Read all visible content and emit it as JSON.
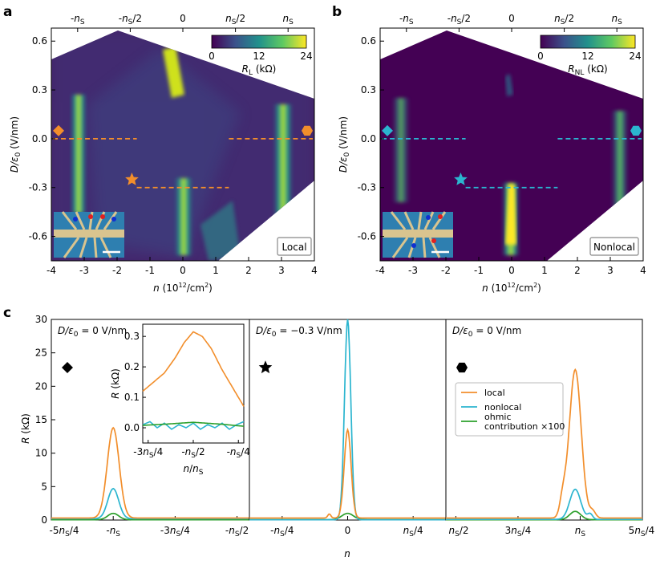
{
  "panel_labels": [
    "a",
    "b",
    "c"
  ],
  "chart_data": [
    {
      "type": "heatmap",
      "panel": "a",
      "xlabel": "n (10^12/cm^2)",
      "ylabel": "D/ε0 (V/nm)",
      "xlim": [
        -4,
        4
      ],
      "ylim": [
        -0.75,
        0.68
      ],
      "xticks": [
        "-4",
        "-3",
        "-2",
        "-1",
        "0",
        "1",
        "2",
        "3",
        "4"
      ],
      "yticks": [
        "-0.6",
        "-0.3",
        "0.0",
        "0.3",
        "0.6"
      ],
      "top_ticks": [
        "-nS",
        "-nS/2",
        "0",
        "nS/2",
        "nS"
      ],
      "colorbar": {
        "label": "RL (kΩ)",
        "min": 0,
        "mid": 12,
        "max": 24,
        "ticks": [
          "0",
          "12",
          "24"
        ]
      },
      "box_label": "Local",
      "features": [
        {
          "n": -3.2,
          "D_range": [
            -0.52,
            0.35
          ],
          "peak_kohm": 14
        },
        {
          "n": 0.0,
          "D_range": [
            -0.62,
            -0.22
          ],
          "peak_kohm": 18
        },
        {
          "n": -0.5,
          "D_range": [
            0.28,
            0.63
          ],
          "peak_kohm": 18
        },
        {
          "n": 3.1,
          "D_range": [
            -0.65,
            0.22
          ],
          "peak_kohm": 22
        }
      ],
      "cuts": [
        {
          "marker": "diamond",
          "D": 0.0,
          "n_range": [
            -3.95,
            -1.4
          ]
        },
        {
          "marker": "hexagon",
          "D": 0.0,
          "n_range": [
            1.4,
            3.95
          ]
        },
        {
          "marker": "star",
          "D": -0.3,
          "n_range": [
            -1.4,
            1.4
          ]
        }
      ],
      "cut_color": "#f28e2b"
    },
    {
      "type": "heatmap",
      "panel": "b",
      "xlabel": "n (10^12/cm^2)",
      "ylabel": "D/ε0 (V/nm)",
      "xlim": [
        -4,
        4
      ],
      "ylim": [
        -0.75,
        0.68
      ],
      "xticks": [
        "-4",
        "-3",
        "-2",
        "-1",
        "0",
        "1",
        "2",
        "3",
        "4"
      ],
      "yticks": [
        "-0.6",
        "-0.3",
        "0.0",
        "0.3",
        "0.6"
      ],
      "top_ticks": [
        "-nS",
        "-nS/2",
        "0",
        "nS/2",
        "nS"
      ],
      "colorbar": {
        "label": "RNL (kΩ)",
        "min": 0,
        "mid": 12,
        "max": 24,
        "ticks": [
          "0",
          "12",
          "24"
        ]
      },
      "box_label": "Nonlocal",
      "features": [
        {
          "n": -3.4,
          "D_range": [
            -0.42,
            0.3
          ],
          "peak_kohm": 6
        },
        {
          "n": 0.0,
          "D_range": [
            -0.62,
            -0.25
          ],
          "peak_kohm": 23
        },
        {
          "n": 3.4,
          "D_range": [
            -0.5,
            0.2
          ],
          "peak_kohm": 8
        }
      ],
      "cuts": [
        {
          "marker": "diamond",
          "D": 0.0,
          "n_range": [
            -3.95,
            -1.4
          ]
        },
        {
          "marker": "hexagon",
          "D": 0.0,
          "n_range": [
            1.4,
            3.95
          ]
        },
        {
          "marker": "star",
          "D": -0.3,
          "n_range": [
            -1.4,
            1.4
          ]
        }
      ],
      "cut_color": "#2bb5cf"
    },
    {
      "type": "line",
      "panel": "c",
      "xlabel": "n",
      "ylabel": "R (kΩ)",
      "ylim": [
        0,
        30
      ],
      "yticks": [
        "0",
        "5",
        "10",
        "15",
        "20",
        "25",
        "30"
      ],
      "legend": {
        "placement": "right",
        "entries": [
          "local",
          "nonlocal",
          "ohmic\ncontribution ×100"
        ]
      },
      "colors": {
        "local": "#f28e2b",
        "nonlocal": "#2bb5cf",
        "ohmic": "#2ca02c"
      },
      "subpanels": [
        {
          "title": "D/ε0 = 0 V/nm",
          "marker": "diamond",
          "xlim": [
            -1.25,
            -0.45
          ],
          "xticks": [
            -1.25,
            -1.0,
            -0.75,
            -0.5
          ],
          "xticklabels": [
            "-5nS/4",
            "-nS",
            "-3nS/4",
            "-nS/2"
          ],
          "peaks": {
            "center": -1.0,
            "local": 13.8,
            "nonlocal": 4.7,
            "ohmic": 1.0,
            "local_base": 0.3,
            "nonlocal_base": 0.2,
            "ohmic_base": 0.05
          },
          "inset": {
            "xlabel": "n/nS",
            "ylabel": "R (kΩ)",
            "xlim": [
              -0.78,
              -0.22
            ],
            "ylim": [
              -0.05,
              0.34
            ],
            "xticks": [
              -0.75,
              -0.5,
              -0.25
            ],
            "xticklabels": [
              "-3nS/4",
              "-nS/2",
              "-nS/4"
            ],
            "yticks": [
              0.0,
              0.1,
              0.2,
              0.3
            ],
            "yticklabels": [
              "0.0",
              "0.1",
              "0.2",
              "0.3"
            ],
            "local": {
              "x": [
                -0.78,
                -0.72,
                -0.66,
                -0.6,
                -0.55,
                -0.5,
                -0.45,
                -0.4,
                -0.34,
                -0.28,
                -0.22
              ],
              "y": [
                0.12,
                0.15,
                0.18,
                0.23,
                0.28,
                0.315,
                0.3,
                0.26,
                0.19,
                0.13,
                0.07
              ]
            },
            "nonlocal": {
              "x": [
                -0.78,
                -0.74,
                -0.7,
                -0.66,
                -0.62,
                -0.58,
                -0.54,
                -0.5,
                -0.46,
                -0.42,
                -0.38,
                -0.34,
                -0.3,
                -0.26,
                -0.22
              ],
              "y": [
                0.01,
                0.02,
                0.0,
                0.015,
                -0.005,
                0.01,
                0.0,
                0.015,
                -0.005,
                0.01,
                0.0,
                0.015,
                -0.005,
                0.01,
                0.02
              ]
            },
            "ohmic": {
              "x": [
                -0.78,
                -0.65,
                -0.5,
                -0.35,
                -0.22
              ],
              "y": [
                0.008,
                0.012,
                0.018,
                0.012,
                0.005
              ]
            }
          }
        },
        {
          "title": "D/ε0 = −0.3 V/nm",
          "marker": "star",
          "xlim": [
            -0.375,
            0.375
          ],
          "xticks": [
            -0.25,
            0.0,
            0.25
          ],
          "xticklabels": [
            "-nS/4",
            "0",
            "nS/4"
          ],
          "peaks": {
            "center": 0.0,
            "local": 13.5,
            "nonlocal": 30.0,
            "ohmic": 1.0,
            "local_base": 0.3,
            "nonlocal_base": 0.05,
            "ohmic_base": 0.05
          }
        },
        {
          "title": "D/ε0 = 0 V/nm",
          "marker": "hexagon",
          "xlim": [
            0.46,
            1.25
          ],
          "xticks": [
            0.5,
            0.75,
            1.0,
            1.25
          ],
          "xticklabels": [
            "nS/2",
            "3nS/4",
            "nS",
            "5nS/4"
          ],
          "peaks": {
            "center": 0.98,
            "local": 22.5,
            "nonlocal": 4.6,
            "ohmic": 1.3,
            "local_base": 0.3,
            "nonlocal_base": 0.1,
            "ohmic_base": 0.05
          }
        }
      ]
    }
  ]
}
